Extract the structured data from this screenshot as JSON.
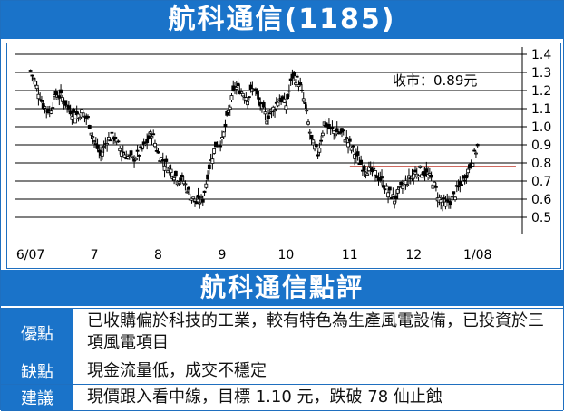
{
  "title": "航科通信(1185)",
  "section_title": "航科通信點評",
  "review": [
    {
      "label": "優點",
      "text": "已收購偏於科技的工業，較有特色為生產風電設備，已投資於三項風電項目"
    },
    {
      "label": "缺點",
      "text": "現金流量低，成交不穩定"
    },
    {
      "label": "建議",
      "text": "現價跟入看中線，目標 1.10 元，跌破 78 仙止蝕"
    }
  ],
  "colors": {
    "accent": "#1a73c9",
    "candle": "#000000",
    "reference_line": "#c0392b",
    "grid": "#000000"
  },
  "chart_data": {
    "type": "candlestick",
    "annotation": "收市：0.89元",
    "x_ticks": [
      "6/07",
      "7",
      "8",
      "9",
      "10",
      "11",
      "12",
      "1/08"
    ],
    "y_ticks": [
      "1.4",
      "1.3",
      "1.2",
      "1.1",
      "1.0",
      "0.9",
      "0.8",
      "0.7",
      "0.6",
      "0.5"
    ],
    "ylim": [
      0.45,
      1.42
    ],
    "grid": "horizontal",
    "reference_line": {
      "value": 0.78,
      "from_month": 11.0,
      "to_month": 13.6
    },
    "close": [
      {
        "t": 6.0,
        "v": 1.31
      },
      {
        "t": 6.1,
        "v": 1.22
      },
      {
        "t": 6.2,
        "v": 1.12
      },
      {
        "t": 6.3,
        "v": 1.08
      },
      {
        "t": 6.4,
        "v": 1.18
      },
      {
        "t": 6.5,
        "v": 1.16
      },
      {
        "t": 6.6,
        "v": 1.1
      },
      {
        "t": 6.7,
        "v": 1.06
      },
      {
        "t": 6.8,
        "v": 1.08
      },
      {
        "t": 6.9,
        "v": 1.04
      },
      {
        "t": 7.0,
        "v": 0.92
      },
      {
        "t": 7.1,
        "v": 0.84
      },
      {
        "t": 7.2,
        "v": 0.93
      },
      {
        "t": 7.3,
        "v": 0.95
      },
      {
        "t": 7.4,
        "v": 0.88
      },
      {
        "t": 7.5,
        "v": 0.84
      },
      {
        "t": 7.6,
        "v": 0.82
      },
      {
        "t": 7.7,
        "v": 0.85
      },
      {
        "t": 7.8,
        "v": 0.9
      },
      {
        "t": 7.9,
        "v": 0.97
      },
      {
        "t": 8.0,
        "v": 0.85
      },
      {
        "t": 8.1,
        "v": 0.8
      },
      {
        "t": 8.2,
        "v": 0.76
      },
      {
        "t": 8.3,
        "v": 0.72
      },
      {
        "t": 8.4,
        "v": 0.7
      },
      {
        "t": 8.5,
        "v": 0.62
      },
      {
        "t": 8.6,
        "v": 0.58
      },
      {
        "t": 8.7,
        "v": 0.6
      },
      {
        "t": 8.8,
        "v": 0.78
      },
      {
        "t": 8.9,
        "v": 0.9
      },
      {
        "t": 9.0,
        "v": 0.92
      },
      {
        "t": 9.1,
        "v": 1.08
      },
      {
        "t": 9.2,
        "v": 1.22
      },
      {
        "t": 9.3,
        "v": 1.2
      },
      {
        "t": 9.4,
        "v": 1.16
      },
      {
        "t": 9.5,
        "v": 1.22
      },
      {
        "t": 9.6,
        "v": 1.12
      },
      {
        "t": 9.7,
        "v": 1.05
      },
      {
        "t": 9.8,
        "v": 1.1
      },
      {
        "t": 9.9,
        "v": 1.16
      },
      {
        "t": 10.0,
        "v": 1.12
      },
      {
        "t": 10.1,
        "v": 1.28
      },
      {
        "t": 10.2,
        "v": 1.25
      },
      {
        "t": 10.3,
        "v": 1.12
      },
      {
        "t": 10.4,
        "v": 0.92
      },
      {
        "t": 10.5,
        "v": 0.85
      },
      {
        "t": 10.6,
        "v": 1.02
      },
      {
        "t": 10.7,
        "v": 0.98
      },
      {
        "t": 10.8,
        "v": 0.97
      },
      {
        "t": 10.9,
        "v": 0.96
      },
      {
        "t": 11.0,
        "v": 0.9
      },
      {
        "t": 11.1,
        "v": 0.84
      },
      {
        "t": 11.2,
        "v": 0.78
      },
      {
        "t": 11.3,
        "v": 0.76
      },
      {
        "t": 11.4,
        "v": 0.74
      },
      {
        "t": 11.5,
        "v": 0.7
      },
      {
        "t": 11.6,
        "v": 0.64
      },
      {
        "t": 11.7,
        "v": 0.6
      },
      {
        "t": 11.8,
        "v": 0.66
      },
      {
        "t": 11.9,
        "v": 0.7
      },
      {
        "t": 12.0,
        "v": 0.74
      },
      {
        "t": 12.1,
        "v": 0.76
      },
      {
        "t": 12.2,
        "v": 0.74
      },
      {
        "t": 12.3,
        "v": 0.7
      },
      {
        "t": 12.4,
        "v": 0.6
      },
      {
        "t": 12.5,
        "v": 0.57
      },
      {
        "t": 12.6,
        "v": 0.6
      },
      {
        "t": 12.7,
        "v": 0.66
      },
      {
        "t": 12.8,
        "v": 0.72
      },
      {
        "t": 12.9,
        "v": 0.8
      },
      {
        "t": 13.0,
        "v": 0.89
      }
    ]
  }
}
